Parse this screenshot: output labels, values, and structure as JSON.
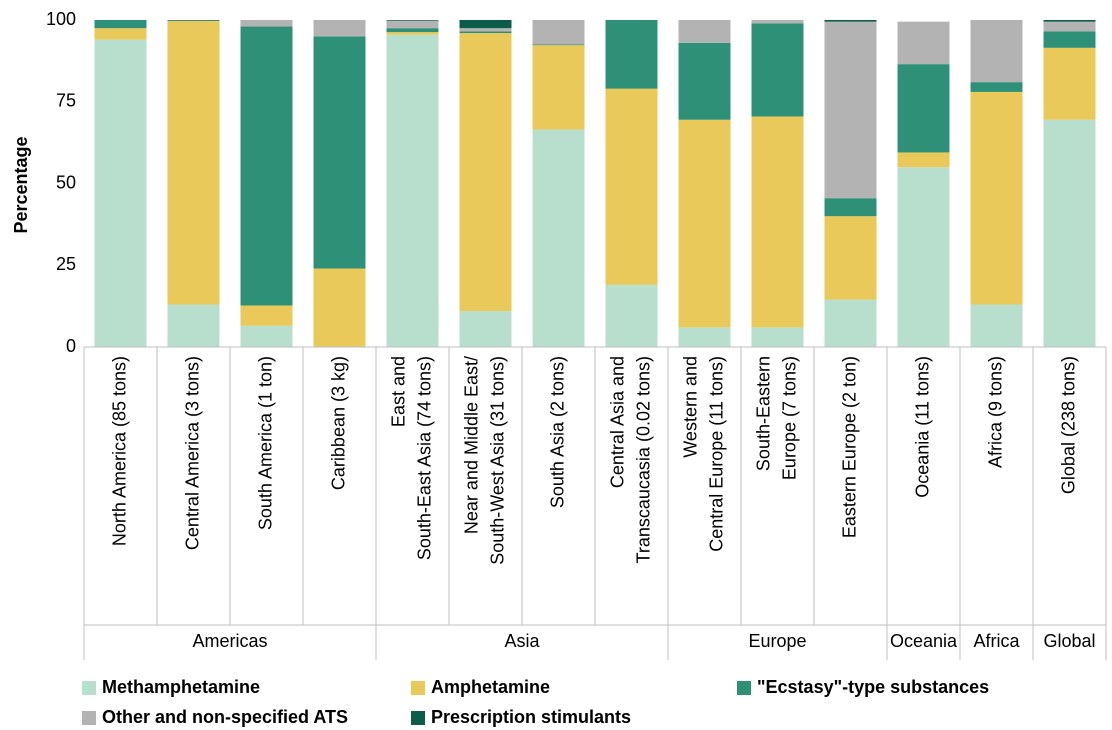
{
  "chart_data": {
    "type": "stacked_bar",
    "y_label": "Percentage",
    "categories": [
      [
        "North America (85 tons)"
      ],
      [
        "Central America (3 tons)"
      ],
      [
        "South America (1 ton)"
      ],
      [
        "Caribbean (3 kg)"
      ],
      [
        "East and",
        "South-East Asia (74 tons)"
      ],
      [
        "Near and Middle East/",
        "South-West Asia (31 tons)"
      ],
      [
        "South Asia (2 tons)"
      ],
      [
        "Central Asia and",
        "Transcaucasia (0.02 tons)"
      ],
      [
        "Western and",
        "Central Europe (11 tons)"
      ],
      [
        "South-Eastern",
        "Europe (7 tons)"
      ],
      [
        "Eastern Europe (2 ton)"
      ],
      [
        "Oceania (11 tons)"
      ],
      [
        "Africa (9 tons)"
      ],
      [
        "Global (238 tons)"
      ]
    ],
    "groups": [
      "Americas",
      "Americas",
      "Americas",
      "Americas",
      "Asia",
      "Asia",
      "Asia",
      "Asia",
      "Europe",
      "Europe",
      "Europe",
      "Oceania",
      "Africa",
      "Global"
    ],
    "series": [
      {
        "name": "Methamphetamine",
        "color": "#b8dfcd",
        "values": [
          94,
          13,
          6.5,
          0,
          95.5,
          11,
          66.5,
          19,
          6,
          6,
          14.5,
          55,
          13,
          69.5
        ]
      },
      {
        "name": "Amphetamine",
        "color": "#e8c95a",
        "values": [
          3.5,
          86.7,
          6.2,
          24,
          0.8,
          85,
          25.8,
          60,
          63.5,
          64.5,
          25.5,
          4.5,
          65,
          22
        ]
      },
      {
        "name": "\"Ecstasy\"-type substances",
        "color": "#2e9077",
        "values": [
          2.5,
          0.3,
          85.3,
          71,
          1.2,
          0.5,
          0.2,
          21,
          23.5,
          28.5,
          5.5,
          27,
          3,
          5
        ]
      },
      {
        "name": "Other and non-specified ATS",
        "color": "#b3b3b3",
        "values": [
          0,
          0,
          2,
          5,
          2.3,
          1,
          7.5,
          0,
          7,
          1,
          54,
          13,
          19,
          3
        ]
      },
      {
        "name": "Prescription stimulants",
        "color": "#0d5c4a",
        "values": [
          0,
          0,
          0,
          0,
          0.2,
          2.5,
          0,
          0,
          0,
          0,
          0.5,
          0,
          0,
          0.5
        ]
      }
    ],
    "ylim": [
      0,
      100
    ],
    "yticks": [
      0,
      25,
      50,
      75,
      100
    ]
  }
}
